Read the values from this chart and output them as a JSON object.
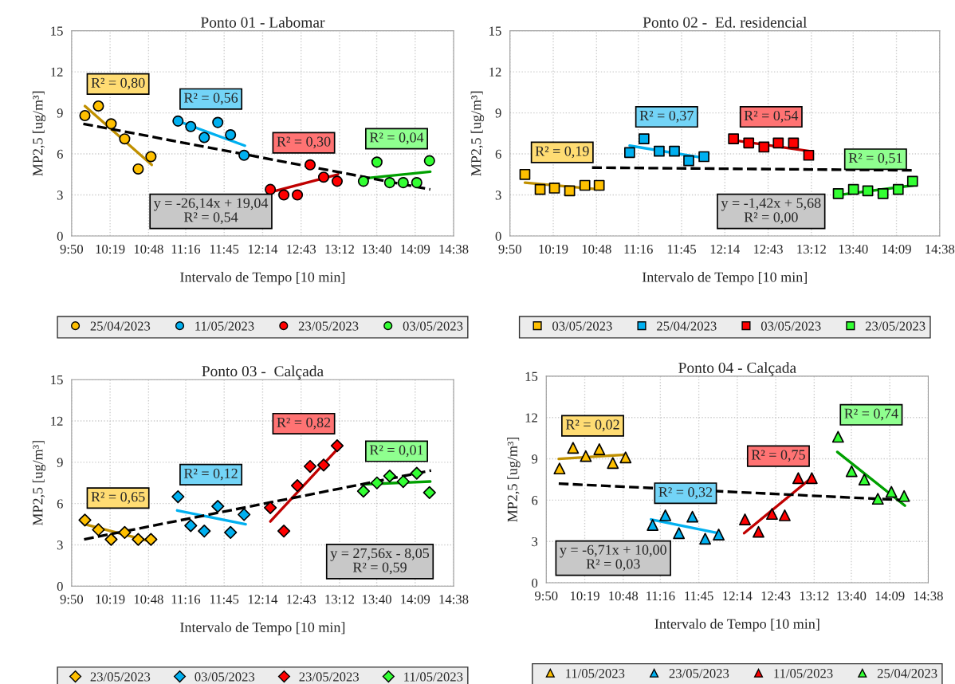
{
  "chart_data": [
    {
      "type": "scatter",
      "title": "Ponto 01 - Labomar",
      "xlabel": "Intervalo de Tempo [10 min]",
      "ylabel": "MP2,5 [ug/m³]",
      "marker": "circle",
      "grid": true,
      "legend": "bottom",
      "xlim": [
        9.8333,
        14.6333
      ],
      "xticks": [
        {
          "value": 9.8333,
          "label": "9:50"
        },
        {
          "value": 10.3167,
          "label": "10:19"
        },
        {
          "value": 10.8,
          "label": "10:48"
        },
        {
          "value": 11.2667,
          "label": "11:16"
        },
        {
          "value": 11.75,
          "label": "11:45"
        },
        {
          "value": 12.2333,
          "label": "12:14"
        },
        {
          "value": 12.7167,
          "label": "12:43"
        },
        {
          "value": 13.2,
          "label": "13:12"
        },
        {
          "value": 13.6667,
          "label": "13:40"
        },
        {
          "value": 14.15,
          "label": "14:09"
        },
        {
          "value": 14.6333,
          "label": "14:38"
        }
      ],
      "ylim": [
        0,
        15
      ],
      "yticks": [
        0,
        3,
        6,
        9,
        12,
        15
      ],
      "series": [
        {
          "name": "25/04/2023",
          "color": "#ffc000",
          "x": [
            10.0,
            10.17,
            10.33,
            10.5,
            10.67,
            10.83
          ],
          "values": [
            8.8,
            9.5,
            8.2,
            7.1,
            4.9,
            5.8
          ]
        },
        {
          "name": "11/05/2023",
          "color": "#00b0f0",
          "x": [
            11.17,
            11.33,
            11.5,
            11.67,
            11.83,
            12.0
          ],
          "values": [
            8.4,
            8.0,
            7.2,
            8.3,
            7.4,
            5.9
          ]
        },
        {
          "name": "23/05/2023",
          "color": "#ff0000",
          "x": [
            12.33,
            12.5,
            12.67,
            12.83,
            13.0,
            13.17
          ],
          "values": [
            3.4,
            3.0,
            3.0,
            5.2,
            4.3,
            4.0
          ]
        },
        {
          "name": "03/05/2023",
          "color": "#33ff33",
          "x": [
            13.5,
            13.67,
            13.83,
            14.0,
            14.17,
            14.33
          ],
          "values": [
            4.0,
            5.4,
            3.9,
            3.9,
            3.9,
            5.5
          ]
        },
        {
          "type": "line",
          "marker": "none",
          "color": "#c09000",
          "x": [
            10.0,
            10.84
          ],
          "values": [
            9.5,
            5.2
          ]
        },
        {
          "type": "line",
          "marker": "none",
          "color": "#00b0f0",
          "x": [
            11.17,
            12.01
          ],
          "values": [
            8.4,
            6.6
          ]
        },
        {
          "type": "line",
          "marker": "none",
          "color": "#c00000",
          "x": [
            12.33,
            13.18
          ],
          "values": [
            3.2,
            4.5
          ]
        },
        {
          "type": "line",
          "marker": "none",
          "color": "#00a000",
          "x": [
            13.5,
            14.34
          ],
          "values": [
            4.2,
            4.7
          ]
        },
        {
          "type": "line",
          "marker": "none",
          "color": "#000000",
          "line_style": "dashed",
          "x": [
            9.98,
            14.34
          ],
          "values": [
            8.2,
            3.4
          ]
        }
      ],
      "annotations": [
        "R² = 0,80",
        "R² = 0,56",
        "R² = 0,30",
        "R² = 0,04",
        "y = -26,14x + 19,04\nR² = 0,54"
      ]
    },
    {
      "type": "scatter",
      "title": "Ponto 02 -  Ed. residencial",
      "xlabel": "Intervalo de Tempo [10 min]",
      "ylabel": "MP2,5 [ug/m³]",
      "marker": "square",
      "grid": true,
      "legend": "bottom",
      "xlim": [
        9.8333,
        14.6333
      ],
      "xticks": [
        {
          "value": 9.8333,
          "label": "9:50"
        },
        {
          "value": 10.3167,
          "label": "10:19"
        },
        {
          "value": 10.8,
          "label": "10:48"
        },
        {
          "value": 11.2667,
          "label": "11:16"
        },
        {
          "value": 11.75,
          "label": "11:45"
        },
        {
          "value": 12.2333,
          "label": "12:14"
        },
        {
          "value": 12.7167,
          "label": "12:43"
        },
        {
          "value": 13.2,
          "label": "13:12"
        },
        {
          "value": 13.6667,
          "label": "13:40"
        },
        {
          "value": 14.15,
          "label": "14:09"
        },
        {
          "value": 14.6333,
          "label": "14:38"
        }
      ],
      "ylim": [
        0,
        15
      ],
      "yticks": [
        0,
        3,
        6,
        9,
        12,
        15
      ],
      "series": [
        {
          "name": "03/05/2023",
          "color": "#ffc000",
          "x": [
            10.0,
            10.17,
            10.33,
            10.5,
            10.67,
            10.83
          ],
          "values": [
            4.5,
            3.4,
            3.5,
            3.3,
            3.7,
            3.7
          ]
        },
        {
          "name": "25/04/2023",
          "color": "#00b0f0",
          "x": [
            11.17,
            11.33,
            11.5,
            11.67,
            11.83,
            12.0
          ],
          "values": [
            6.1,
            7.1,
            6.2,
            6.2,
            5.5,
            5.8
          ]
        },
        {
          "name": "03/05/2023",
          "color": "#ff0000",
          "x": [
            12.33,
            12.5,
            12.67,
            12.83,
            13.0,
            13.17
          ],
          "values": [
            7.1,
            6.8,
            6.5,
            6.8,
            6.8,
            5.9
          ]
        },
        {
          "name": "23/05/2023",
          "color": "#33ff33",
          "x": [
            13.5,
            13.67,
            13.83,
            14.0,
            14.17,
            14.33
          ],
          "values": [
            3.1,
            3.4,
            3.3,
            3.1,
            3.4,
            4.0
          ]
        },
        {
          "type": "line",
          "marker": "none",
          "color": "#c09000",
          "x": [
            10.0,
            10.84
          ],
          "values": [
            3.9,
            3.4
          ]
        },
        {
          "type": "line",
          "marker": "none",
          "color": "#00b0f0",
          "x": [
            11.17,
            12.0
          ],
          "values": [
            6.6,
            5.7
          ]
        },
        {
          "type": "line",
          "marker": "none",
          "color": "#c00000",
          "x": [
            12.33,
            13.18
          ],
          "values": [
            7.0,
            6.2
          ]
        },
        {
          "type": "line",
          "marker": "none",
          "color": "#00a000",
          "x": [
            13.5,
            14.34
          ],
          "values": [
            3.0,
            3.7
          ]
        },
        {
          "type": "line",
          "marker": "none",
          "color": "#000000",
          "line_style": "dashed",
          "x": [
            10.75,
            14.34
          ],
          "values": [
            5.0,
            4.8
          ]
        }
      ],
      "annotations": [
        "R² = 0,19",
        "R² = 0,37",
        "R² = 0,54",
        "R² = 0,51",
        "y = -1,42x + 5,68\nR² = 0,00"
      ]
    },
    {
      "type": "scatter",
      "title": "Ponto 03 -  Calçada",
      "xlabel": "Intervalo de Tempo [10 min]",
      "ylabel": "MP2,5 [ug/m³]",
      "marker": "diamond",
      "grid": true,
      "legend": "bottom",
      "xlim": [
        9.8333,
        14.6333
      ],
      "xticks": [
        {
          "value": 9.8333,
          "label": "9:50"
        },
        {
          "value": 10.3167,
          "label": "10:19"
        },
        {
          "value": 10.8,
          "label": "10:48"
        },
        {
          "value": 11.2667,
          "label": "11:16"
        },
        {
          "value": 11.75,
          "label": "11:45"
        },
        {
          "value": 12.2333,
          "label": "12:14"
        },
        {
          "value": 12.7167,
          "label": "12:43"
        },
        {
          "value": 13.2,
          "label": "13:12"
        },
        {
          "value": 13.6667,
          "label": "13:40"
        },
        {
          "value": 14.15,
          "label": "14:09"
        },
        {
          "value": 14.6333,
          "label": "14:38"
        }
      ],
      "ylim": [
        0,
        15
      ],
      "yticks": [
        0,
        3,
        6,
        9,
        12,
        15
      ],
      "series": [
        {
          "name": "23/05/2023",
          "color": "#ffc000",
          "x": [
            10.0,
            10.17,
            10.33,
            10.5,
            10.67,
            10.83
          ],
          "values": [
            4.8,
            4.1,
            3.4,
            3.9,
            3.4,
            3.4
          ]
        },
        {
          "name": "03/05/2023",
          "color": "#00b0f0",
          "x": [
            11.17,
            11.33,
            11.5,
            11.67,
            11.83,
            12.0
          ],
          "values": [
            6.5,
            4.4,
            4.0,
            5.8,
            3.9,
            5.2
          ]
        },
        {
          "name": "23/05/2023",
          "color": "#ff0000",
          "x": [
            12.33,
            12.5,
            12.67,
            12.83,
            13.0,
            13.17
          ],
          "values": [
            5.7,
            4.0,
            7.3,
            8.7,
            8.8,
            10.2
          ]
        },
        {
          "name": "11/05/2023",
          "color": "#33ff33",
          "x": [
            13.5,
            13.67,
            13.83,
            14.0,
            14.17,
            14.33
          ],
          "values": [
            6.9,
            7.5,
            8.0,
            7.6,
            8.2,
            6.8
          ]
        },
        {
          "type": "line",
          "marker": "none",
          "color": "#c09000",
          "x": [
            10.0,
            10.86
          ],
          "values": [
            4.5,
            3.2
          ]
        },
        {
          "type": "line",
          "marker": "none",
          "color": "#00b0f0",
          "x": [
            11.16,
            12.02
          ],
          "values": [
            5.5,
            4.5
          ]
        },
        {
          "type": "line",
          "marker": "none",
          "color": "#c00000",
          "x": [
            12.33,
            13.18
          ],
          "values": [
            4.7,
            10.0
          ]
        },
        {
          "type": "line",
          "marker": "none",
          "color": "#00a000",
          "x": [
            13.5,
            14.34
          ],
          "values": [
            7.4,
            7.6
          ]
        },
        {
          "type": "line",
          "marker": "none",
          "color": "#000000",
          "line_style": "dashed",
          "x": [
            9.99,
            14.35
          ],
          "values": [
            3.4,
            8.4
          ]
        }
      ],
      "annotations": [
        "R² = 0,65",
        "R² = 0,12",
        "R² = 0,82",
        "R² = 0,01",
        "y = 27,56x - 8,05\nR² = 0,59"
      ]
    },
    {
      "type": "scatter",
      "title": "Ponto 04 - Calçada",
      "xlabel": "Intervalo de Tempo [10 min]",
      "ylabel": "MP2,5 [ug/m³]",
      "marker": "triangle",
      "grid": true,
      "legend": "bottom",
      "xlim": [
        9.8333,
        14.6333
      ],
      "xticks": [
        {
          "value": 9.8333,
          "label": "9:50"
        },
        {
          "value": 10.3167,
          "label": "10:19"
        },
        {
          "value": 10.8,
          "label": "10:48"
        },
        {
          "value": 11.2667,
          "label": "11:16"
        },
        {
          "value": 11.75,
          "label": "11:45"
        },
        {
          "value": 12.2333,
          "label": "12:14"
        },
        {
          "value": 12.7167,
          "label": "12:43"
        },
        {
          "value": 13.2,
          "label": "13:12"
        },
        {
          "value": 13.6667,
          "label": "13:40"
        },
        {
          "value": 14.15,
          "label": "14:09"
        },
        {
          "value": 14.6333,
          "label": "14:38"
        }
      ],
      "ylim": [
        0,
        15
      ],
      "yticks": [
        0,
        3,
        6,
        9,
        12,
        15
      ],
      "series": [
        {
          "name": "11/05/2023",
          "color": "#ffc000",
          "x": [
            10.0,
            10.17,
            10.33,
            10.5,
            10.67,
            10.83
          ],
          "values": [
            8.3,
            9.8,
            9.2,
            9.7,
            8.7,
            9.1
          ]
        },
        {
          "name": "23/05/2023",
          "color": "#00b0f0",
          "x": [
            11.17,
            11.33,
            11.5,
            11.67,
            11.83,
            12.0
          ],
          "values": [
            4.2,
            4.9,
            3.6,
            4.8,
            3.2,
            3.5
          ]
        },
        {
          "name": "11/05/2023",
          "color": "#ff0000",
          "x": [
            12.33,
            12.5,
            12.67,
            12.83,
            13.0,
            13.17
          ],
          "values": [
            4.6,
            3.7,
            5.0,
            4.9,
            7.6,
            7.6
          ]
        },
        {
          "name": "25/04/2023",
          "color": "#33ff33",
          "x": [
            13.5,
            13.67,
            13.83,
            14.0,
            14.17,
            14.33
          ],
          "values": [
            10.6,
            8.1,
            7.5,
            6.1,
            6.6,
            6.3
          ]
        },
        {
          "type": "line",
          "marker": "none",
          "color": "#c09000",
          "x": [
            9.99,
            10.83
          ],
          "values": [
            9.0,
            9.3
          ]
        },
        {
          "type": "line",
          "marker": "none",
          "color": "#00b0f0",
          "x": [
            11.15,
            12.0
          ],
          "values": [
            4.6,
            3.6
          ]
        },
        {
          "type": "line",
          "marker": "none",
          "color": "#c00000",
          "x": [
            12.32,
            13.14
          ],
          "values": [
            3.6,
            7.5
          ]
        },
        {
          "type": "line",
          "marker": "none",
          "color": "#00a000",
          "x": [
            13.49,
            14.34
          ],
          "values": [
            9.5,
            5.6
          ]
        },
        {
          "type": "line",
          "marker": "none",
          "color": "#000000",
          "line_style": "dashed",
          "x": [
            9.99,
            14.34
          ],
          "values": [
            7.2,
            6.0
          ]
        }
      ],
      "annotations": [
        "R² = 0,02",
        "R² = 0,32",
        "R² = 0,75",
        "R² = 0,74",
        "y = -6,71x + 10,00\nR² = 0,03"
      ]
    }
  ]
}
